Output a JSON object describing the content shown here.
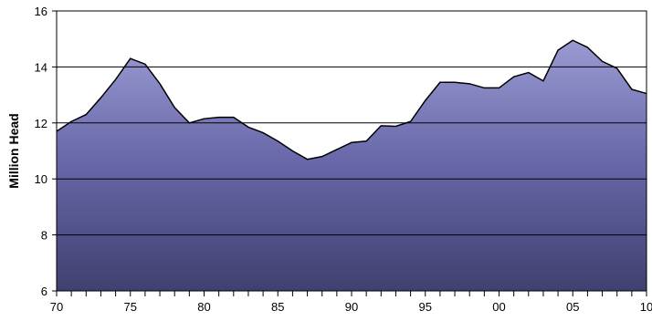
{
  "chart_data": {
    "type": "area",
    "title": "",
    "xlabel": "",
    "ylabel": "Million Head",
    "ylim": [
      6,
      16
    ],
    "yticks": [
      6,
      8,
      10,
      12,
      14,
      16
    ],
    "xlim": [
      1970,
      2010
    ],
    "xtick_labels": [
      {
        "x": 1970,
        "label": "70"
      },
      {
        "x": 1975,
        "label": "75"
      },
      {
        "x": 1980,
        "label": "80"
      },
      {
        "x": 1985,
        "label": "85"
      },
      {
        "x": 1990,
        "label": "90"
      },
      {
        "x": 1995,
        "label": "95"
      },
      {
        "x": 2000,
        "label": "00"
      },
      {
        "x": 2005,
        "label": "05"
      },
      {
        "x": 2010,
        "label": "10"
      }
    ],
    "grid": "horizontal",
    "legend": "none",
    "colors": {
      "fill_top": "#9a9ad2",
      "fill_mid": "#6666a8",
      "fill_bottom": "#404070",
      "line": "#000000",
      "grid": "#000000"
    },
    "x": [
      1970,
      1971,
      1972,
      1973,
      1974,
      1975,
      1976,
      1977,
      1978,
      1979,
      1980,
      1981,
      1982,
      1983,
      1984,
      1985,
      1986,
      1987,
      1988,
      1989,
      1990,
      1991,
      1992,
      1993,
      1994,
      1995,
      1996,
      1997,
      1998,
      1999,
      2000,
      2001,
      2002,
      2003,
      2004,
      2005,
      2006,
      2007,
      2008,
      2009,
      2010
    ],
    "values": [
      11.7,
      12.05,
      12.3,
      12.9,
      13.55,
      14.3,
      14.1,
      13.4,
      12.55,
      12.0,
      12.15,
      12.2,
      12.2,
      11.85,
      11.65,
      11.35,
      11.0,
      10.7,
      10.8,
      11.05,
      11.3,
      11.35,
      11.9,
      11.88,
      12.05,
      12.8,
      13.45,
      13.45,
      13.4,
      13.25,
      13.25,
      13.65,
      13.8,
      13.5,
      14.6,
      14.95,
      14.7,
      14.2,
      13.95,
      13.2,
      13.05
    ]
  }
}
